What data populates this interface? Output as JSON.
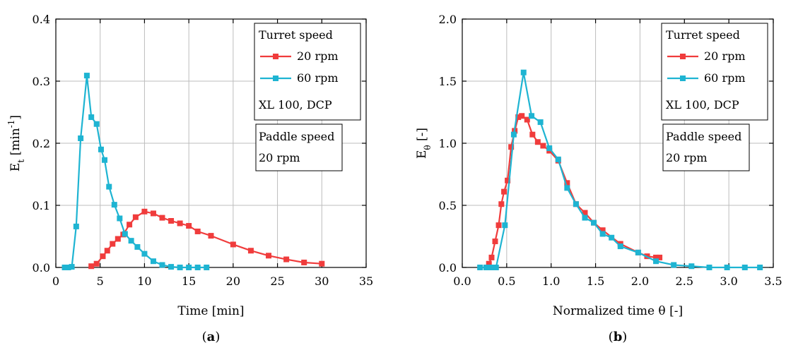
{
  "chart_data": [
    {
      "type": "line",
      "panel_label": "(a)",
      "panel_letter": "a",
      "xlabel": "Time [min]",
      "ylabel_main": "E",
      "ylabel_sub": "t",
      "ylabel_tail": " [min",
      "ylabel_sup": "-1",
      "ylabel_end": "]",
      "xlim": [
        0,
        35
      ],
      "ylim": [
        0,
        0.4
      ],
      "xticks": [
        "0",
        "5",
        "10",
        "15",
        "20",
        "25",
        "30",
        "35"
      ],
      "yticks": [
        "0.0",
        "0.1",
        "0.2",
        "0.3",
        "0.4"
      ],
      "grid": true,
      "legend": {
        "title": "Turret speed",
        "footer": "XL 100, DCP",
        "note_title": "Paddle speed",
        "note_value": "20 rpm",
        "placement": "top-right"
      },
      "series": [
        {
          "name": "20 rpm",
          "color": "#f03c3c",
          "x": [
            4.0,
            4.6,
            5.3,
            5.8,
            6.4,
            7.0,
            7.6,
            8.3,
            9.0,
            10.0,
            11.0,
            12.0,
            13.0,
            14.0,
            15.0,
            16.0,
            17.5,
            20.0,
            22.0,
            24.0,
            26.0,
            28.0,
            30.0
          ],
          "y": [
            0.002,
            0.006,
            0.018,
            0.027,
            0.038,
            0.046,
            0.053,
            0.069,
            0.081,
            0.09,
            0.087,
            0.08,
            0.075,
            0.071,
            0.067,
            0.058,
            0.051,
            0.037,
            0.027,
            0.019,
            0.013,
            0.008,
            0.006
          ]
        },
        {
          "name": "60 rpm",
          "color": "#1eb4d2",
          "x": [
            1.0,
            1.4,
            1.8,
            2.3,
            2.8,
            3.5,
            4.0,
            4.6,
            5.1,
            5.5,
            6.0,
            6.6,
            7.2,
            7.8,
            8.5,
            9.2,
            10.0,
            11.0,
            12.0,
            13.0,
            14.0,
            15.0,
            16.0,
            17.0
          ],
          "y": [
            0.0,
            0.0,
            0.001,
            0.066,
            0.208,
            0.309,
            0.242,
            0.231,
            0.19,
            0.173,
            0.13,
            0.101,
            0.079,
            0.054,
            0.043,
            0.033,
            0.022,
            0.01,
            0.004,
            0.001,
            0.0,
            0.0,
            0.0,
            0.0
          ]
        }
      ]
    },
    {
      "type": "line",
      "panel_label": "(b)",
      "panel_letter": "b",
      "xlabel": "Normalized time θ [-]",
      "ylabel_main": "E",
      "ylabel_sub": "θ",
      "ylabel_tail": " [-]",
      "ylabel_sup": "",
      "ylabel_end": "",
      "xlim": [
        0,
        3.5
      ],
      "ylim": [
        0,
        2.0
      ],
      "xticks": [
        "0.0",
        "0.5",
        "1.0",
        "1.5",
        "2.0",
        "2.5",
        "3.0",
        "3.5"
      ],
      "yticks": [
        "0.0",
        "0.5",
        "1.0",
        "1.5",
        "2.0"
      ],
      "grid": true,
      "legend": {
        "title": "Turret speed",
        "footer": "XL 100, DCP",
        "note_title": "Paddle speed",
        "note_value": "20 rpm",
        "placement": "top-right"
      },
      "series": [
        {
          "name": "20 rpm",
          "color": "#f03c3c",
          "x": [
            0.3,
            0.33,
            0.37,
            0.41,
            0.44,
            0.47,
            0.51,
            0.55,
            0.59,
            0.63,
            0.67,
            0.73,
            0.79,
            0.85,
            0.91,
            0.98,
            1.08,
            1.18,
            1.28,
            1.38,
            1.48,
            1.58,
            1.78,
            1.98,
            2.08,
            2.18,
            2.22
          ],
          "y": [
            0.03,
            0.08,
            0.21,
            0.34,
            0.51,
            0.61,
            0.7,
            0.97,
            1.1,
            1.21,
            1.22,
            1.19,
            1.07,
            1.01,
            0.98,
            0.94,
            0.86,
            0.68,
            0.51,
            0.44,
            0.36,
            0.3,
            0.19,
            0.12,
            0.09,
            0.08,
            0.08
          ]
        },
        {
          "name": "60 rpm",
          "color": "#1eb4d2",
          "x": [
            0.2,
            0.27,
            0.32,
            0.38,
            0.48,
            0.58,
            0.69,
            0.78,
            0.88,
            0.98,
            1.08,
            1.18,
            1.28,
            1.38,
            1.48,
            1.58,
            1.68,
            1.78,
            1.98,
            2.18,
            2.38,
            2.58,
            2.78,
            2.98,
            3.18,
            3.35
          ],
          "y": [
            0.0,
            0.0,
            0.0,
            0.0,
            0.34,
            1.07,
            1.57,
            1.22,
            1.17,
            0.96,
            0.87,
            0.64,
            0.51,
            0.4,
            0.36,
            0.27,
            0.24,
            0.17,
            0.12,
            0.05,
            0.02,
            0.01,
            0.0,
            0.0,
            0.0,
            0.0
          ]
        }
      ]
    }
  ]
}
